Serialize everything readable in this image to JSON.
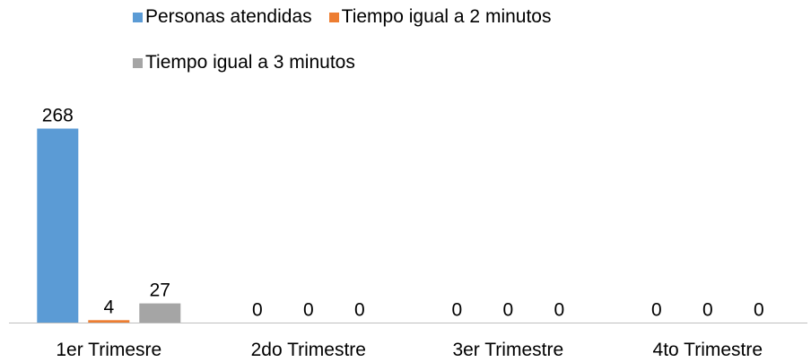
{
  "chart_data": {
    "type": "bar",
    "categories": [
      "1er Trimesre",
      "2do Trimestre",
      "3er Trimestre",
      "4to Trimestre"
    ],
    "series": [
      {
        "name": "Personas atendidas",
        "values": [
          268,
          0,
          0,
          0
        ],
        "color": "#5B9BD5"
      },
      {
        "name": "Tiempo igual a 2 minutos",
        "values": [
          4,
          0,
          0,
          0
        ],
        "color": "#ED7D31"
      },
      {
        "name": "Tiempo igual a 3 minutos",
        "values": [
          27,
          0,
          0,
          0
        ],
        "color": "#A5A5A5"
      }
    ],
    "data_labels": true,
    "ylim": [
      0,
      268
    ],
    "grid": false,
    "legend_position": "top",
    "axis_color": "#BFBFBF"
  }
}
